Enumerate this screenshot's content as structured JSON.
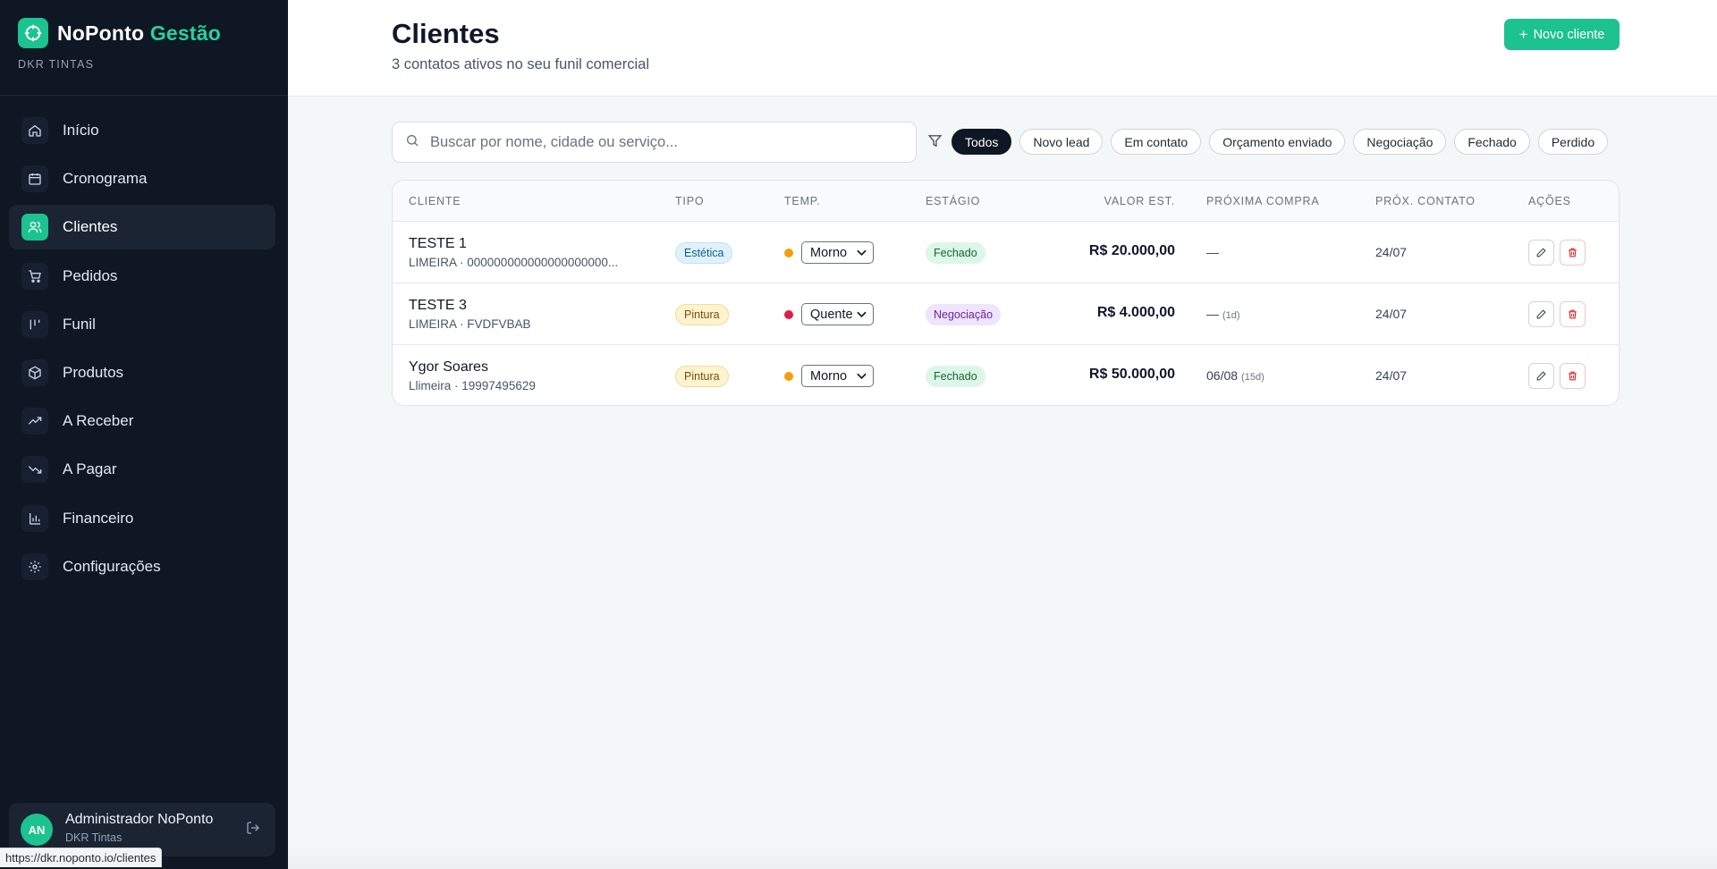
{
  "brand": {
    "name_main": "NoPonto",
    "name_accent": "Gestão",
    "company": "DKR TINTAS",
    "logo_icon": "target-icon",
    "accent_color": "#1cc28f"
  },
  "sidebar": {
    "items": [
      {
        "label": "Início",
        "icon": "home-icon",
        "active": false
      },
      {
        "label": "Cronograma",
        "icon": "calendar-icon",
        "active": false
      },
      {
        "label": "Clientes",
        "icon": "users-icon",
        "active": true
      },
      {
        "label": "Pedidos",
        "icon": "cart-icon",
        "active": false
      },
      {
        "label": "Funil",
        "icon": "funnel-bars-icon",
        "active": false
      },
      {
        "label": "Produtos",
        "icon": "box-icon",
        "active": false
      },
      {
        "label": "A Receber",
        "icon": "trending-up-icon",
        "active": false
      },
      {
        "label": "A Pagar",
        "icon": "trending-down-icon",
        "active": false
      },
      {
        "label": "Financeiro",
        "icon": "bar-chart-icon",
        "active": false
      },
      {
        "label": "Configurações",
        "icon": "gear-icon",
        "active": false
      }
    ]
  },
  "user": {
    "initials": "AN",
    "name": "Administrador NoPonto",
    "company": "DKR Tintas"
  },
  "status_url": "https://dkr.noponto.io/clientes",
  "header": {
    "title": "Clientes",
    "subtitle": "3 contatos ativos no seu funil comercial",
    "new_button": "Novo cliente"
  },
  "search": {
    "placeholder": "Buscar por nome, cidade ou serviço..."
  },
  "filters": [
    {
      "label": "Todos",
      "active": true
    },
    {
      "label": "Novo lead",
      "active": false
    },
    {
      "label": "Em contato",
      "active": false
    },
    {
      "label": "Orçamento enviado",
      "active": false
    },
    {
      "label": "Negociação",
      "active": false
    },
    {
      "label": "Fechado",
      "active": false
    },
    {
      "label": "Perdido",
      "active": false
    }
  ],
  "table": {
    "columns": [
      "CLIENTE",
      "TIPO",
      "TEMP.",
      "ESTÁGIO",
      "VALOR EST.",
      "PRÓXIMA COMPRA",
      "PRÓX. CONTATO",
      "AÇÕES"
    ],
    "rows": [
      {
        "name": "TESTE 1",
        "sub": "LIMEIRA · 000000000000000000000...",
        "tipo": "Estética",
        "temp_color": "#f59e0b",
        "temp": "Morno",
        "estagio": "Fechado",
        "valor": "R$ 20.000,00",
        "proxima_compra": "—",
        "proxima_compra_days": "",
        "prox_contato": "24/07"
      },
      {
        "name": "TESTE 3",
        "sub": "LIMEIRA · FVDFVBAB",
        "tipo": "Pintura",
        "temp_color": "#e11d48",
        "temp": "Quente",
        "estagio": "Negociação",
        "valor": "R$ 4.000,00",
        "proxima_compra": "—",
        "proxima_compra_days": "(1d)",
        "prox_contato": "24/07"
      },
      {
        "name": "Ygor Soares",
        "sub": "Llimeira · 19997495629",
        "tipo": "Pintura",
        "temp_color": "#f59e0b",
        "temp": "Morno",
        "estagio": "Fechado",
        "valor": "R$ 50.000,00",
        "proxima_compra": "06/08",
        "proxima_compra_days": "(15d)",
        "prox_contato": "24/07"
      }
    ]
  }
}
